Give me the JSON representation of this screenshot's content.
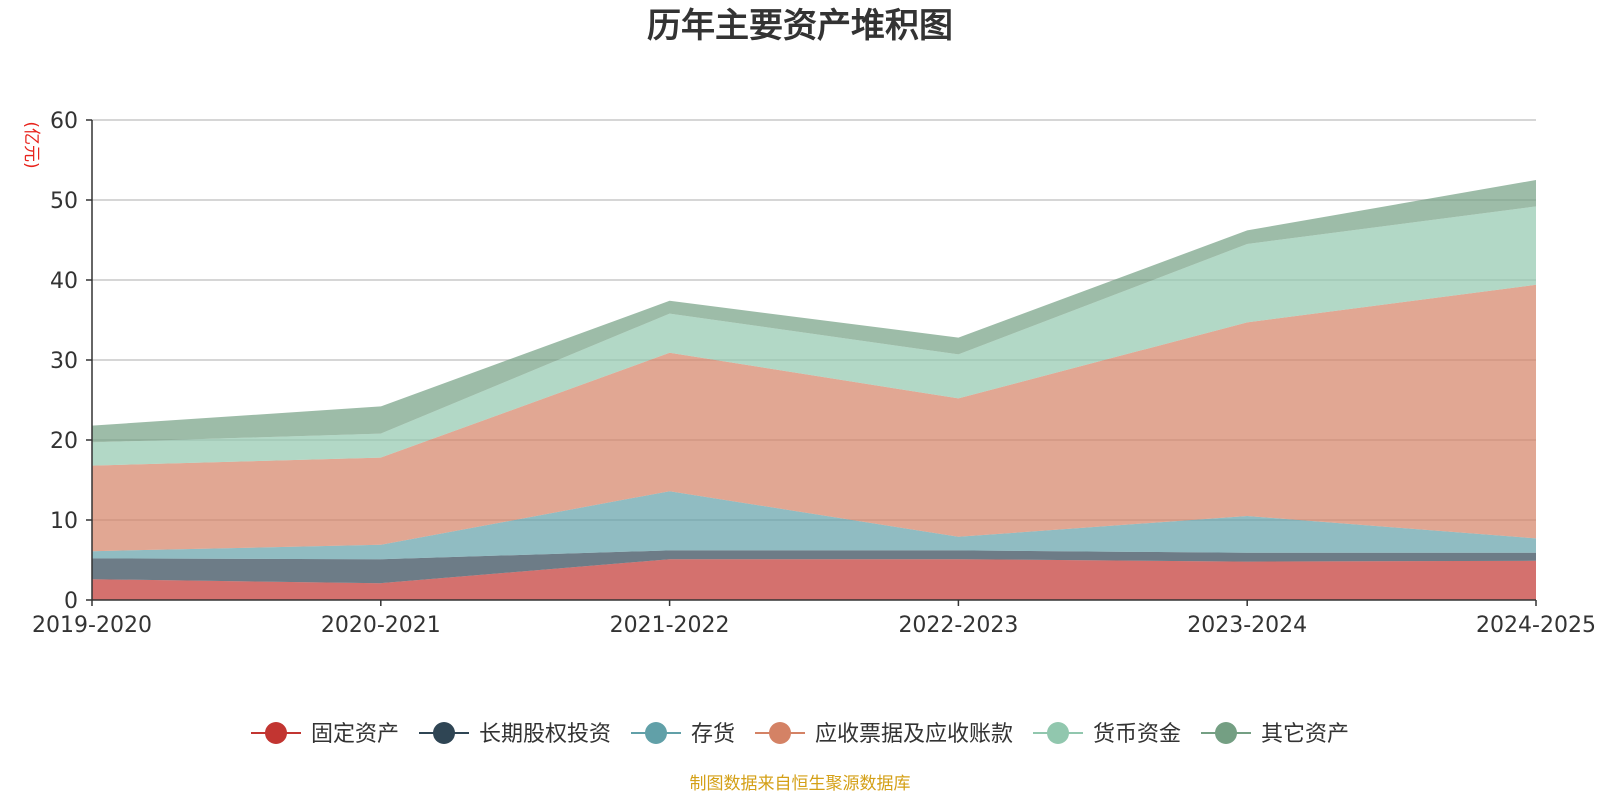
{
  "chart_data": {
    "type": "area",
    "title": "历年主要资产堆积图",
    "ylabel": "(亿元)",
    "xlabel": "",
    "categories": [
      "2019-2020",
      "2020-2021",
      "2021-2022",
      "2022-2023",
      "2023-2024",
      "2024-2025"
    ],
    "ylim": [
      0,
      60
    ],
    "yticks": [
      0,
      10,
      20,
      30,
      40,
      50,
      60
    ],
    "stacked": true,
    "grid": true,
    "legend_position": "bottom",
    "series": [
      {
        "name": "固定资产",
        "values": [
          2.6,
          2.1,
          5.1,
          5.1,
          4.8,
          4.9
        ],
        "color": "#c23531"
      },
      {
        "name": "长期股权投资",
        "values": [
          2.6,
          3.0,
          1.1,
          1.1,
          1.1,
          1.0
        ],
        "color": "#2f4554"
      },
      {
        "name": "存货",
        "values": [
          0.9,
          1.8,
          7.4,
          1.7,
          4.6,
          1.8
        ],
        "color": "#61a0a8"
      },
      {
        "name": "应收票据及应收账款",
        "values": [
          10.7,
          10.9,
          17.3,
          17.3,
          24.2,
          31.7
        ],
        "color": "#d48265"
      },
      {
        "name": "货币资金",
        "values": [
          2.9,
          3.0,
          4.9,
          5.5,
          9.8,
          9.8
        ],
        "color": "#91c7ae"
      },
      {
        "name": "其它资产",
        "values": [
          2.1,
          3.4,
          1.6,
          2.1,
          1.7,
          3.3
        ],
        "color": "#749f83"
      }
    ],
    "source": "制图数据来自恒生聚源数据库"
  }
}
